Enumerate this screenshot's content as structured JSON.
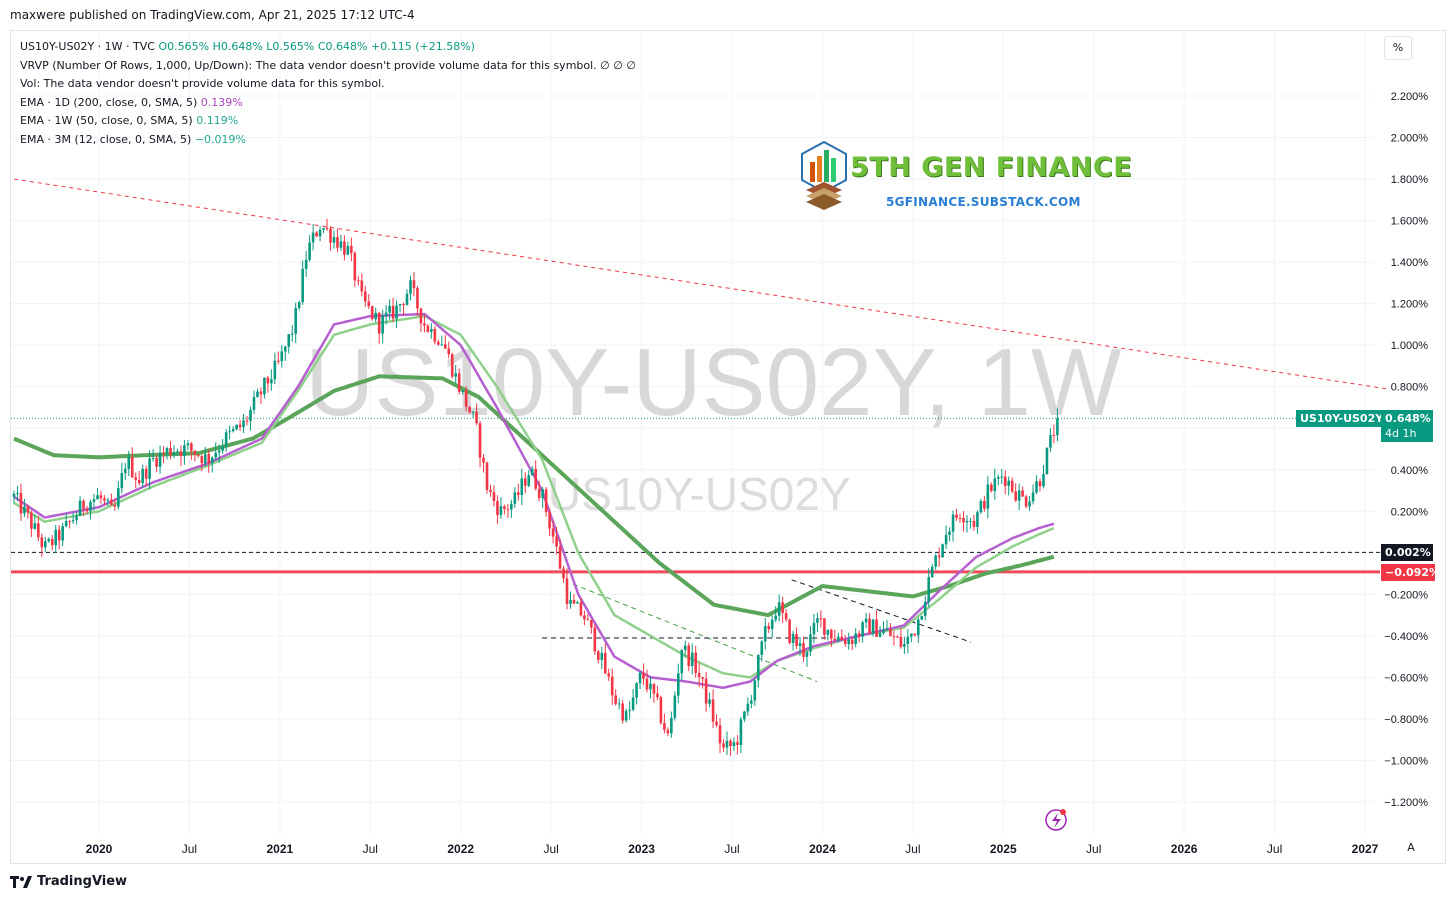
{
  "header": {
    "published": "maxwere published on TradingView.com, Apr 21, 2025 17:12 UTC-4"
  },
  "legend": {
    "symbol_line": {
      "prefix": "US10Y-US02Y · 1W · TVC",
      "o": "O0.565%",
      "h": "H0.648%",
      "l": "L0.565%",
      "c": "C0.648%",
      "chg": "+0.115 (+21.58%)"
    },
    "vrvp": "VRVP (Number Of Rows, 1,000, Up/Down): The data vendor doesn't provide volume data for this symbol.  ∅  ∅  ∅",
    "vol": "Vol: The data vendor doesn't provide volume data for this symbol.",
    "ema1": {
      "label": "EMA · 1D (200, close, 0, SMA, 5)",
      "value": "0.139%"
    },
    "ema2": {
      "label": "EMA · 1W (50, close, 0, SMA, 5)",
      "value": "0.119%"
    },
    "ema3": {
      "label": "EMA · 3M (12, close, 0, SMA, 5)",
      "value": "−0.019%"
    }
  },
  "toolbar": {
    "percent_button": "%",
    "auto_button": "A"
  },
  "watermark": {
    "big": "US10Y-US02Y, 1W",
    "small": "US10Y-US02Y"
  },
  "brand": {
    "title": "5TH GEN FINANCE",
    "subtitle": "5GFINANCE.SUBSTACK.COM"
  },
  "price_labels": {
    "current_symbol": "US10Y-US02Y",
    "current_value": "0.648%",
    "countdown": "4d 1h",
    "level_black": "0.002%",
    "level_red": "−0.092%"
  },
  "footer": {
    "brand": "TradingView"
  },
  "colors": {
    "up": "#089981",
    "down": "#f23645",
    "ema_magenta": "#b55fd0",
    "ema_light_green": "#8fd18b",
    "ema_dark_green": "#5aa55a",
    "trend_red": "#f23645",
    "support_red": "#ef4a5a"
  },
  "chart_data": {
    "type": "candlestick",
    "y_unit": "%",
    "y_ticks": [
      "2.200%",
      "2.000%",
      "1.800%",
      "1.600%",
      "1.400%",
      "1.200%",
      "1.000%",
      "0.800%",
      "0.600%",
      "0.400%",
      "0.200%",
      "0.000%",
      "−0.200%",
      "−0.400%",
      "−0.600%",
      "−0.800%",
      "−1.000%",
      "−1.200%"
    ],
    "y_tick_values": [
      2.2,
      2.0,
      1.8,
      1.6,
      1.4,
      1.2,
      1.0,
      0.8,
      0.6,
      0.4,
      0.2,
      0.0,
      -0.2,
      -0.4,
      -0.6,
      -0.8,
      -1.0,
      -1.2
    ],
    "x_ticks": [
      "2020",
      "Jul",
      "2021",
      "Jul",
      "2022",
      "Jul",
      "2023",
      "Jul",
      "2024",
      "Jul",
      "2025",
      "Jul",
      "2026",
      "Jul",
      "2027"
    ],
    "x_tick_years": [
      2020.0,
      2020.5,
      2021.0,
      2021.5,
      2022.0,
      2022.5,
      2023.0,
      2023.5,
      2024.0,
      2024.5,
      2025.0,
      2025.5,
      2026.0,
      2026.5,
      2027.0
    ],
    "x_range": [
      2019.53,
      2027.12
    ],
    "y_range": [
      -1.28,
      2.35
    ],
    "close_path": [
      [
        2019.53,
        0.27
      ],
      [
        2019.62,
        0.15
      ],
      [
        2019.7,
        0.02
      ],
      [
        2019.8,
        0.1
      ],
      [
        2019.92,
        0.24
      ],
      [
        2020.0,
        0.27
      ],
      [
        2020.08,
        0.18
      ],
      [
        2020.15,
        0.45
      ],
      [
        2020.22,
        0.35
      ],
      [
        2020.3,
        0.45
      ],
      [
        2020.4,
        0.5
      ],
      [
        2020.5,
        0.5
      ],
      [
        2020.6,
        0.45
      ],
      [
        2020.7,
        0.55
      ],
      [
        2020.8,
        0.62
      ],
      [
        2020.9,
        0.78
      ],
      [
        2021.0,
        0.92
      ],
      [
        2021.08,
        1.1
      ],
      [
        2021.15,
        1.45
      ],
      [
        2021.22,
        1.58
      ],
      [
        2021.3,
        1.52
      ],
      [
        2021.38,
        1.45
      ],
      [
        2021.45,
        1.22
      ],
      [
        2021.55,
        1.1
      ],
      [
        2021.65,
        1.18
      ],
      [
        2021.72,
        1.28
      ],
      [
        2021.8,
        1.1
      ],
      [
        2021.9,
        1.02
      ],
      [
        2022.0,
        0.78
      ],
      [
        2022.08,
        0.62
      ],
      [
        2022.15,
        0.3
      ],
      [
        2022.22,
        0.2
      ],
      [
        2022.3,
        0.25
      ],
      [
        2022.38,
        0.4
      ],
      [
        2022.45,
        0.28
      ],
      [
        2022.52,
        0.05
      ],
      [
        2022.6,
        -0.25
      ],
      [
        2022.68,
        -0.3
      ],
      [
        2022.75,
        -0.45
      ],
      [
        2022.85,
        -0.7
      ],
      [
        2022.92,
        -0.8
      ],
      [
        2023.0,
        -0.58
      ],
      [
        2023.08,
        -0.72
      ],
      [
        2023.15,
        -0.9
      ],
      [
        2023.22,
        -0.45
      ],
      [
        2023.3,
        -0.55
      ],
      [
        2023.38,
        -0.75
      ],
      [
        2023.45,
        -0.95
      ],
      [
        2023.52,
        -0.92
      ],
      [
        2023.6,
        -0.7
      ],
      [
        2023.68,
        -0.4
      ],
      [
        2023.75,
        -0.25
      ],
      [
        2023.82,
        -0.4
      ],
      [
        2023.9,
        -0.48
      ],
      [
        2023.98,
        -0.32
      ],
      [
        2024.06,
        -0.4
      ],
      [
        2024.15,
        -0.42
      ],
      [
        2024.25,
        -0.35
      ],
      [
        2024.35,
        -0.38
      ],
      [
        2024.45,
        -0.45
      ],
      [
        2024.52,
        -0.35
      ],
      [
        2024.6,
        -0.1
      ],
      [
        2024.68,
        0.1
      ],
      [
        2024.76,
        0.2
      ],
      [
        2024.84,
        0.15
      ],
      [
        2024.92,
        0.3
      ],
      [
        2025.0,
        0.38
      ],
      [
        2025.06,
        0.3
      ],
      [
        2025.12,
        0.25
      ],
      [
        2025.2,
        0.35
      ],
      [
        2025.26,
        0.53
      ],
      [
        2025.3,
        0.648
      ]
    ],
    "ema_200d_path": [
      [
        2019.53,
        0.27
      ],
      [
        2019.7,
        0.17
      ],
      [
        2020.0,
        0.22
      ],
      [
        2020.3,
        0.34
      ],
      [
        2020.6,
        0.43
      ],
      [
        2020.9,
        0.55
      ],
      [
        2021.1,
        0.8
      ],
      [
        2021.3,
        1.1
      ],
      [
        2021.5,
        1.14
      ],
      [
        2021.8,
        1.15
      ],
      [
        2022.0,
        1.0
      ],
      [
        2022.2,
        0.7
      ],
      [
        2022.45,
        0.3
      ],
      [
        2022.65,
        -0.2
      ],
      [
        2022.85,
        -0.5
      ],
      [
        2023.05,
        -0.6
      ],
      [
        2023.25,
        -0.62
      ],
      [
        2023.45,
        -0.65
      ],
      [
        2023.6,
        -0.62
      ],
      [
        2023.75,
        -0.52
      ],
      [
        2023.95,
        -0.45
      ],
      [
        2024.2,
        -0.4
      ],
      [
        2024.45,
        -0.35
      ],
      [
        2024.65,
        -0.18
      ],
      [
        2024.85,
        -0.02
      ],
      [
        2025.05,
        0.07
      ],
      [
        2025.2,
        0.12
      ],
      [
        2025.28,
        0.14
      ]
    ],
    "ema_50w_path": [
      [
        2019.53,
        0.24
      ],
      [
        2019.7,
        0.15
      ],
      [
        2020.0,
        0.2
      ],
      [
        2020.3,
        0.32
      ],
      [
        2020.6,
        0.42
      ],
      [
        2020.9,
        0.53
      ],
      [
        2021.1,
        0.78
      ],
      [
        2021.3,
        1.05
      ],
      [
        2021.5,
        1.1
      ],
      [
        2021.8,
        1.14
      ],
      [
        2022.0,
        1.05
      ],
      [
        2022.2,
        0.8
      ],
      [
        2022.45,
        0.45
      ],
      [
        2022.65,
        0.0
      ],
      [
        2022.85,
        -0.3
      ],
      [
        2023.05,
        -0.4
      ],
      [
        2023.25,
        -0.5
      ],
      [
        2023.45,
        -0.58
      ],
      [
        2023.6,
        -0.6
      ],
      [
        2023.75,
        -0.52
      ],
      [
        2023.95,
        -0.46
      ],
      [
        2024.2,
        -0.4
      ],
      [
        2024.45,
        -0.36
      ],
      [
        2024.65,
        -0.22
      ],
      [
        2024.85,
        -0.07
      ],
      [
        2025.05,
        0.03
      ],
      [
        2025.2,
        0.09
      ],
      [
        2025.28,
        0.119
      ]
    ],
    "ema_3m_path": [
      [
        2019.53,
        0.55
      ],
      [
        2019.75,
        0.47
      ],
      [
        2020.0,
        0.46
      ],
      [
        2020.25,
        0.47
      ],
      [
        2020.55,
        0.48
      ],
      [
        2020.85,
        0.55
      ],
      [
        2021.05,
        0.65
      ],
      [
        2021.3,
        0.78
      ],
      [
        2021.55,
        0.85
      ],
      [
        2021.9,
        0.84
      ],
      [
        2022.1,
        0.75
      ],
      [
        2022.35,
        0.55
      ],
      [
        2022.6,
        0.35
      ],
      [
        2022.85,
        0.15
      ],
      [
        2023.1,
        -0.05
      ],
      [
        2023.4,
        -0.25
      ],
      [
        2023.7,
        -0.3
      ],
      [
        2024.0,
        -0.16
      ],
      [
        2024.3,
        -0.19
      ],
      [
        2024.5,
        -0.21
      ],
      [
        2024.7,
        -0.16
      ],
      [
        2024.9,
        -0.1
      ],
      [
        2025.1,
        -0.06
      ],
      [
        2025.28,
        -0.019
      ]
    ],
    "trend_line_red_dashed": [
      [
        2019.53,
        1.8
      ],
      [
        2027.12,
        0.79
      ]
    ],
    "support_red_solid": -0.092,
    "level_black_dashed": 0.002,
    "dashed_lines_local": [
      {
        "from": [
          2022.62,
          -0.15
        ],
        "to": [
          2023.97,
          -0.62
        ],
        "color": "#43a047"
      },
      {
        "from": [
          2023.83,
          -0.13
        ],
        "to": [
          2024.82,
          -0.43
        ],
        "color": "#131722"
      },
      {
        "from": [
          2022.45,
          -0.41
        ],
        "to": [
          2024.05,
          -0.41
        ],
        "color": "#131722"
      }
    ],
    "current_price": 0.648
  }
}
